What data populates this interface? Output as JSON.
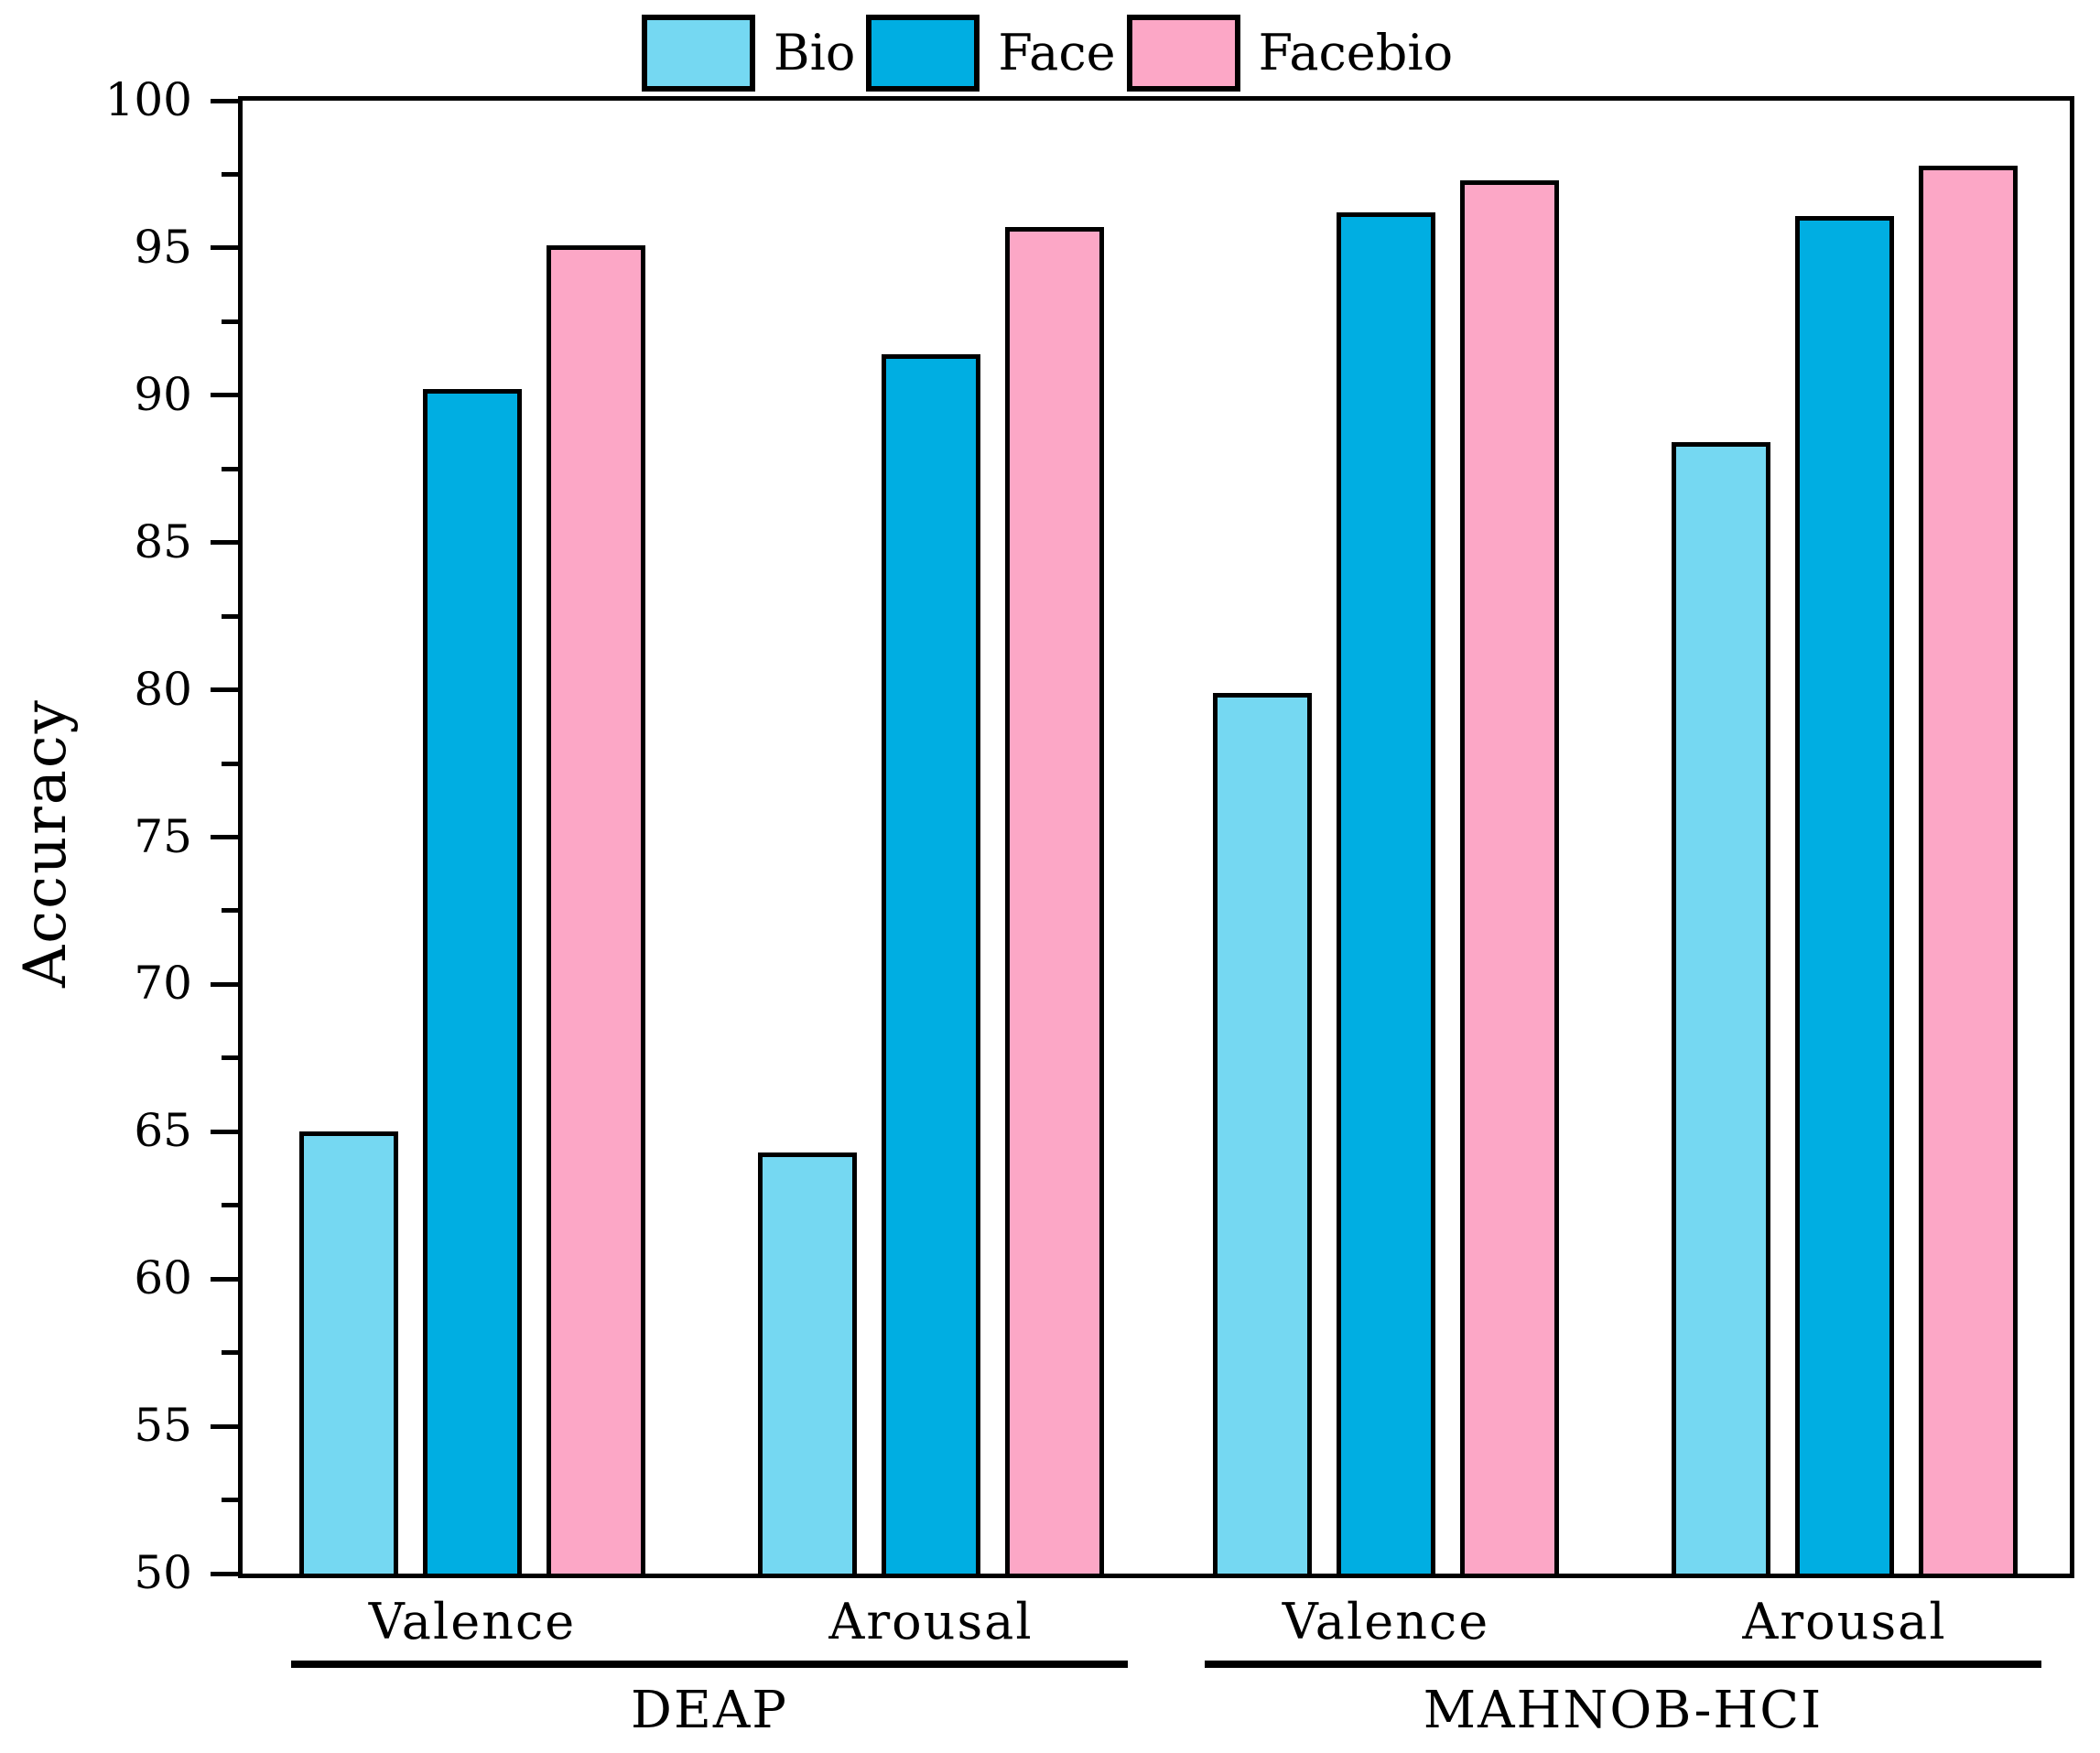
{
  "figure": {
    "background_color": "#ffffff",
    "text_color": "#000000"
  },
  "legend": {
    "position": "top-center",
    "items": [
      {
        "label": "Bio",
        "color": "#75D8F2"
      },
      {
        "label": "Face",
        "color": "#00AEE2"
      },
      {
        "label": "Facebio",
        "color": "#FCA7C6"
      }
    ]
  },
  "chart_data": {
    "type": "bar",
    "title": "",
    "xlabel": "",
    "ylabel": "Accuracy",
    "ylim": [
      50,
      100
    ],
    "ytick_step": 5,
    "ytick_labels": [
      "50",
      "55",
      "60",
      "65",
      "70",
      "75",
      "80",
      "85",
      "90",
      "95",
      "100"
    ],
    "y_minor_tick_step": 2.5,
    "grid": false,
    "legend_position": "top",
    "bar_border_color": "#000000",
    "categories": [
      "Valence",
      "Arousal",
      "Valence",
      "Arousal"
    ],
    "sections": [
      {
        "label": "DEAP",
        "category_indexes": [
          0,
          1
        ]
      },
      {
        "label": "MAHNOB-HCI",
        "category_indexes": [
          2,
          3
        ]
      }
    ],
    "series": [
      {
        "name": "Bio",
        "color": "#75D8F2",
        "values": [
          65.0,
          64.3,
          79.9,
          88.4
        ]
      },
      {
        "name": "Face",
        "color": "#00AEE2",
        "values": [
          90.2,
          91.4,
          96.2,
          96.1
        ]
      },
      {
        "name": "Facebio",
        "color": "#FCA7C6",
        "values": [
          95.1,
          95.7,
          97.3,
          97.8
        ]
      }
    ]
  }
}
